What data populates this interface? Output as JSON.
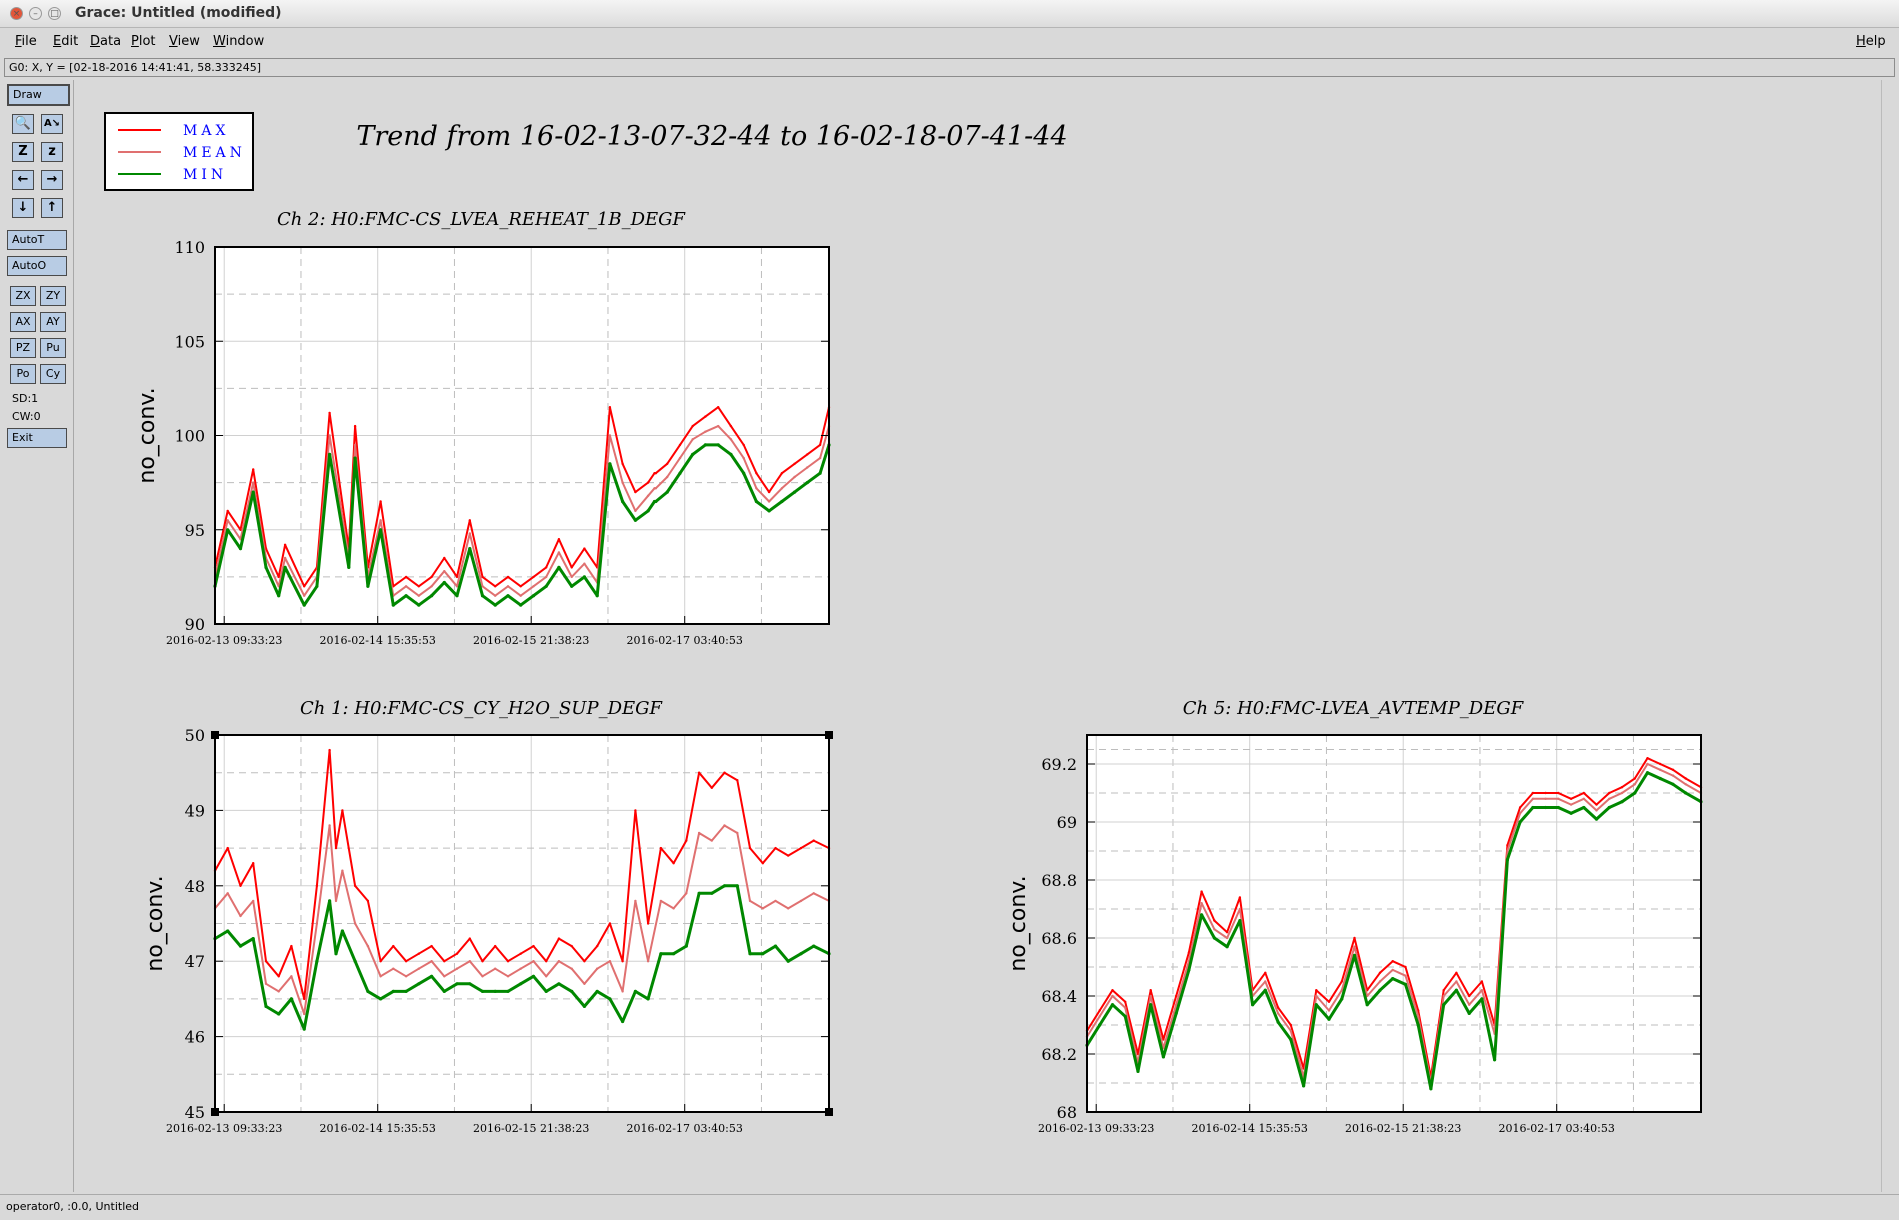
{
  "window": {
    "title": "Grace: Untitled (modified)",
    "close_glyph": "×",
    "minimize_glyph": "–",
    "maximize_glyph": "□"
  },
  "menubar": {
    "items": [
      "File",
      "Edit",
      "Data",
      "Plot",
      "View",
      "Window"
    ],
    "help": "Help"
  },
  "locator": "G0: X, Y = [02-18-2016 14:41:41, 58.333245]",
  "toolbar": {
    "draw": "Draw",
    "zoom_glyph": "🔍",
    "text_glyph": "A↘",
    "zoom_x_glyph": "Z",
    "zoom_y_glyph": "z",
    "left_glyph": "←",
    "right_glyph": "→",
    "down_glyph": "↓",
    "up_glyph": "↑",
    "autot": "AutoT",
    "autoo": "AutoO",
    "zx": "ZX",
    "zy": "ZY",
    "ax": "AX",
    "ay": "AY",
    "pz": "PZ",
    "pu": "Pu",
    "po": "Po",
    "cy": "Cy",
    "sd": "SD:1",
    "cw": "CW:0",
    "exit": "Exit"
  },
  "statusbar": "operator0, :0.0, Untitled",
  "colors": {
    "max": "#ff0000",
    "mean": "#e07070",
    "min": "#008800",
    "toolbutton": "#b8cce4"
  },
  "icons": {
    "zoom": "magnifier-icon",
    "text": "text-tool-icon",
    "zoom_x": "zoom-x-icon",
    "zoom_y": "zoom-y-icon",
    "left": "arrow-left-icon",
    "right": "arrow-right-icon",
    "down": "arrow-down-icon",
    "up": "arrow-up-icon"
  },
  "figure_title": "Trend from 16-02-13-07-32-44 to 16-02-18-07-41-44",
  "chart_data": [
    {
      "type": "line",
      "title": "Ch 2: H0:FMC-CS_LVEA_REHEAT_1B_DEGF",
      "xlabel": "",
      "ylabel": "no_conv.",
      "xticks": [
        "2016-02-13 09:33:23",
        "2016-02-14 15:35:53",
        "2016-02-15 21:38:23",
        "2016-02-17 03:40:53"
      ],
      "ylim": [
        90,
        110
      ],
      "yticks": [
        "90",
        "95",
        "100",
        "105",
        "110"
      ],
      "grid": true,
      "legend": [
        {
          "name": "MAX",
          "color": "#ff0000"
        },
        {
          "name": "MEAN",
          "color": "#e07070"
        },
        {
          "name": "MIN",
          "color": "#008800"
        }
      ],
      "legend_position": "top-left",
      "x_day_offset": [
        0,
        0.1,
        0.2,
        0.3,
        0.4,
        0.5,
        0.55,
        0.7,
        0.8,
        0.9,
        1.05,
        1.1,
        1.2,
        1.3,
        1.4,
        1.5,
        1.6,
        1.7,
        1.8,
        1.9,
        2.0,
        2.1,
        2.2,
        2.3,
        2.4,
        2.5,
        2.6,
        2.7,
        2.8,
        2.9,
        3.0,
        3.1,
        3.2,
        3.3,
        3.4,
        3.45,
        3.46,
        3.55,
        3.65,
        3.75,
        3.85,
        3.95,
        4.05,
        4.15,
        4.25,
        4.35,
        4.45,
        4.55,
        4.65,
        4.75,
        4.82
      ],
      "series": [
        {
          "name": "MAX",
          "values": [
            93.0,
            96.0,
            95.0,
            98.2,
            94.0,
            92.5,
            94.2,
            92.0,
            93.0,
            101.2,
            94.0,
            100.5,
            93.0,
            96.5,
            92.0,
            92.5,
            92.0,
            92.5,
            93.5,
            92.5,
            95.5,
            92.5,
            92.0,
            92.5,
            92.0,
            92.5,
            93.0,
            94.5,
            93.0,
            94.0,
            93.0,
            101.5,
            98.5,
            97.0,
            97.5,
            98.0,
            98.0,
            98.5,
            99.5,
            100.5,
            101.0,
            101.5,
            100.5,
            99.5,
            98.0,
            97.0,
            98.0,
            98.5,
            99.0,
            99.5,
            101.5
          ]
        },
        {
          "name": "MEAN",
          "values": [
            92.5,
            95.5,
            94.5,
            97.5,
            93.5,
            92.0,
            93.5,
            91.5,
            92.5,
            100.0,
            93.5,
            99.5,
            92.5,
            95.5,
            91.5,
            92.0,
            91.5,
            92.0,
            92.8,
            92.0,
            94.8,
            92.0,
            91.5,
            92.0,
            91.5,
            92.0,
            92.5,
            93.8,
            92.5,
            93.2,
            92.2,
            100.0,
            97.5,
            96.0,
            96.8,
            97.2,
            97.2,
            97.8,
            98.8,
            99.8,
            100.2,
            100.5,
            99.8,
            98.8,
            97.2,
            96.5,
            97.2,
            97.8,
            98.3,
            98.8,
            100.5
          ]
        },
        {
          "name": "MIN",
          "values": [
            92.0,
            95.0,
            94.0,
            97.0,
            93.0,
            91.5,
            93.0,
            91.0,
            92.0,
            99.0,
            93.0,
            98.8,
            92.0,
            95.0,
            91.0,
            91.5,
            91.0,
            91.5,
            92.2,
            91.5,
            94.0,
            91.5,
            91.0,
            91.5,
            91.0,
            91.5,
            92.0,
            93.0,
            92.0,
            92.5,
            91.5,
            98.5,
            96.5,
            95.5,
            96.0,
            96.5,
            96.5,
            97.0,
            98.0,
            99.0,
            99.5,
            99.5,
            99.0,
            98.0,
            96.5,
            96.0,
            96.5,
            97.0,
            97.5,
            98.0,
            99.5
          ]
        }
      ]
    },
    {
      "type": "line",
      "title": "Ch 1: H0:FMC-CS_CY_H2O_SUP_DEGF",
      "xlabel": "",
      "ylabel": "no_conv.",
      "xticks": [
        "2016-02-13 09:33:23",
        "2016-02-14 15:35:53",
        "2016-02-15 21:38:23",
        "2016-02-17 03:40:53"
      ],
      "ylim": [
        45,
        50
      ],
      "yticks": [
        "45",
        "46",
        "47",
        "48",
        "49",
        "50"
      ],
      "grid": true,
      "x_day_offset": [
        0,
        0.1,
        0.2,
        0.3,
        0.4,
        0.5,
        0.6,
        0.7,
        0.8,
        0.9,
        0.95,
        1.0,
        1.1,
        1.2,
        1.3,
        1.4,
        1.5,
        1.6,
        1.7,
        1.8,
        1.9,
        2.0,
        2.1,
        2.2,
        2.3,
        2.4,
        2.5,
        2.6,
        2.7,
        2.8,
        2.9,
        3.0,
        3.1,
        3.2,
        3.3,
        3.4,
        3.5,
        3.6,
        3.7,
        3.8,
        3.9,
        4.0,
        4.1,
        4.2,
        4.3,
        4.4,
        4.5,
        4.6,
        4.7,
        4.82
      ],
      "series": [
        {
          "name": "MAX",
          "values": [
            48.2,
            48.5,
            48.0,
            48.3,
            47.0,
            46.8,
            47.2,
            46.5,
            48.0,
            49.8,
            48.5,
            49.0,
            48.0,
            47.8,
            47.0,
            47.2,
            47.0,
            47.1,
            47.2,
            47.0,
            47.1,
            47.3,
            47.0,
            47.2,
            47.0,
            47.1,
            47.2,
            47.0,
            47.3,
            47.2,
            47.0,
            47.2,
            47.5,
            47.0,
            49.0,
            47.5,
            48.5,
            48.3,
            48.6,
            49.5,
            49.3,
            49.5,
            49.4,
            48.5,
            48.3,
            48.5,
            48.4,
            48.5,
            48.6,
            48.5
          ]
        },
        {
          "name": "MEAN",
          "values": [
            47.7,
            47.9,
            47.6,
            47.8,
            46.7,
            46.6,
            46.8,
            46.3,
            47.5,
            48.8,
            47.8,
            48.2,
            47.5,
            47.2,
            46.8,
            46.9,
            46.8,
            46.9,
            47.0,
            46.8,
            46.9,
            47.0,
            46.8,
            46.9,
            46.8,
            46.9,
            47.0,
            46.8,
            47.0,
            46.9,
            46.7,
            46.9,
            47.0,
            46.6,
            47.8,
            47.0,
            47.8,
            47.7,
            47.9,
            48.7,
            48.6,
            48.8,
            48.7,
            47.8,
            47.7,
            47.8,
            47.7,
            47.8,
            47.9,
            47.8
          ]
        },
        {
          "name": "MIN",
          "values": [
            47.3,
            47.4,
            47.2,
            47.3,
            46.4,
            46.3,
            46.5,
            46.1,
            47.0,
            47.8,
            47.1,
            47.4,
            47.0,
            46.6,
            46.5,
            46.6,
            46.6,
            46.7,
            46.8,
            46.6,
            46.7,
            46.7,
            46.6,
            46.6,
            46.6,
            46.7,
            46.8,
            46.6,
            46.7,
            46.6,
            46.4,
            46.6,
            46.5,
            46.2,
            46.6,
            46.5,
            47.1,
            47.1,
            47.2,
            47.9,
            47.9,
            48.0,
            48.0,
            47.1,
            47.1,
            47.2,
            47.0,
            47.1,
            47.2,
            47.1
          ]
        }
      ]
    },
    {
      "type": "line",
      "title": "Ch 5: H0:FMC-LVEA_AVTEMP_DEGF",
      "xlabel": "",
      "ylabel": "no_conv.",
      "xticks": [
        "2016-02-13 09:33:23",
        "2016-02-14 15:35:53",
        "2016-02-15 21:38:23",
        "2016-02-17 03:40:53"
      ],
      "ylim": [
        68,
        69.3
      ],
      "yticks": [
        "68",
        "68.2",
        "68.4",
        "68.6",
        "68.8",
        "69",
        "69.2"
      ],
      "grid": true,
      "x_day_offset": [
        0,
        0.1,
        0.2,
        0.3,
        0.4,
        0.5,
        0.6,
        0.7,
        0.8,
        0.9,
        1.0,
        1.1,
        1.2,
        1.3,
        1.4,
        1.5,
        1.6,
        1.7,
        1.8,
        1.9,
        2.0,
        2.1,
        2.2,
        2.3,
        2.4,
        2.5,
        2.6,
        2.7,
        2.8,
        2.9,
        3.0,
        3.1,
        3.2,
        3.3,
        3.4,
        3.5,
        3.6,
        3.7,
        3.8,
        3.9,
        4.0,
        4.1,
        4.2,
        4.3,
        4.4,
        4.5,
        4.6,
        4.7,
        4.82
      ],
      "series": [
        {
          "name": "MAX",
          "values": [
            68.28,
            68.35,
            68.42,
            68.38,
            68.2,
            68.42,
            68.25,
            68.4,
            68.55,
            68.76,
            68.66,
            68.62,
            68.74,
            68.42,
            68.48,
            68.36,
            68.3,
            68.15,
            68.42,
            68.38,
            68.45,
            68.6,
            68.42,
            68.48,
            68.52,
            68.5,
            68.35,
            68.12,
            68.42,
            68.48,
            68.4,
            68.45,
            68.3,
            68.92,
            69.05,
            69.1,
            69.1,
            69.1,
            69.08,
            69.1,
            69.06,
            69.1,
            69.12,
            69.15,
            69.22,
            69.2,
            69.18,
            69.15,
            69.12
          ]
        },
        {
          "name": "MEAN",
          "values": [
            68.26,
            68.33,
            68.4,
            68.36,
            68.17,
            68.4,
            68.22,
            68.37,
            68.52,
            68.72,
            68.63,
            68.6,
            68.7,
            68.4,
            68.45,
            68.34,
            68.28,
            68.12,
            68.4,
            68.35,
            68.42,
            68.57,
            68.4,
            68.45,
            68.49,
            68.47,
            68.33,
            68.1,
            68.4,
            68.45,
            68.37,
            68.42,
            68.27,
            68.9,
            69.03,
            69.08,
            69.08,
            69.08,
            69.06,
            69.08,
            69.04,
            69.08,
            69.1,
            69.13,
            69.2,
            69.18,
            69.16,
            69.13,
            69.1
          ]
        },
        {
          "name": "MIN",
          "values": [
            68.23,
            68.3,
            68.37,
            68.33,
            68.14,
            68.37,
            68.19,
            68.34,
            68.49,
            68.68,
            68.6,
            68.57,
            68.66,
            68.37,
            68.42,
            68.31,
            68.25,
            68.09,
            68.37,
            68.32,
            68.39,
            68.54,
            68.37,
            68.42,
            68.46,
            68.44,
            68.3,
            68.08,
            68.37,
            68.42,
            68.34,
            68.39,
            68.18,
            68.87,
            69.0,
            69.05,
            69.05,
            69.05,
            69.03,
            69.05,
            69.01,
            69.05,
            69.07,
            69.1,
            69.17,
            69.15,
            69.13,
            69.1,
            69.07
          ]
        }
      ]
    }
  ]
}
